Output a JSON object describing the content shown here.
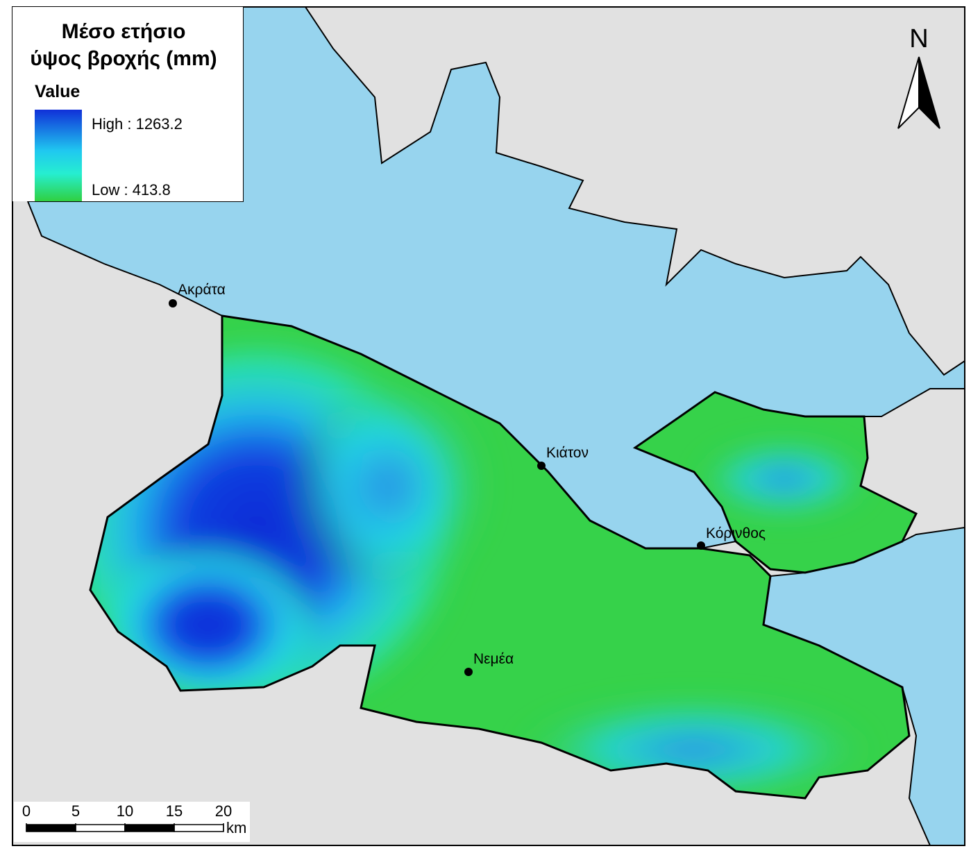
{
  "title": [
    "Μέσο ετήσιο",
    "ύψος βροχής (mm)"
  ],
  "legend": {
    "heading": "Value",
    "high": "High : 1263.2",
    "low": "Low : 413.8"
  },
  "places": [
    "Ακράτα",
    "Κιάτον",
    "Κόρινθος",
    "Νεμέα"
  ],
  "north": "N",
  "scale_bar": {
    "ticks": [
      0,
      5,
      10,
      15,
      20
    ],
    "unit": "km"
  }
}
